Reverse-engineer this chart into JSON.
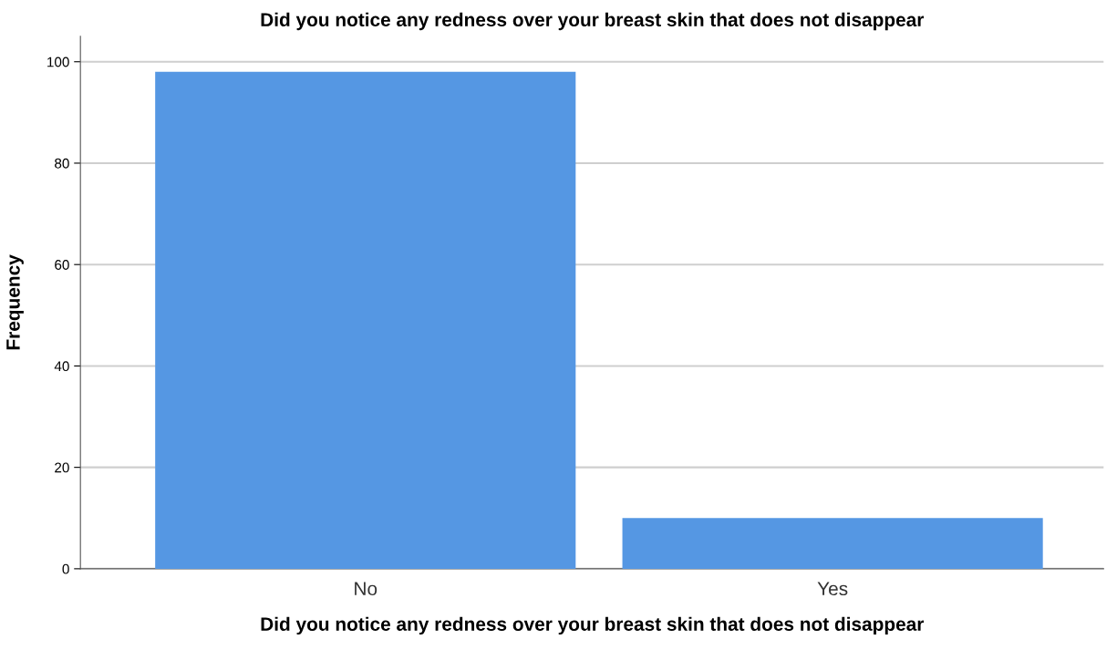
{
  "chart_data": {
    "type": "bar",
    "title": "Did you notice any redness over your breast skin that does not disappear",
    "xlabel": "Did you notice any redness over your breast skin that does not disappear",
    "ylabel": "Frequency",
    "categories": [
      "No",
      "Yes"
    ],
    "values": [
      98,
      10
    ],
    "color": "#5597e3",
    "ylim": [
      0,
      105
    ],
    "yticks": [
      0,
      20,
      40,
      60,
      80,
      100
    ],
    "grid": "y",
    "legend": false
  }
}
